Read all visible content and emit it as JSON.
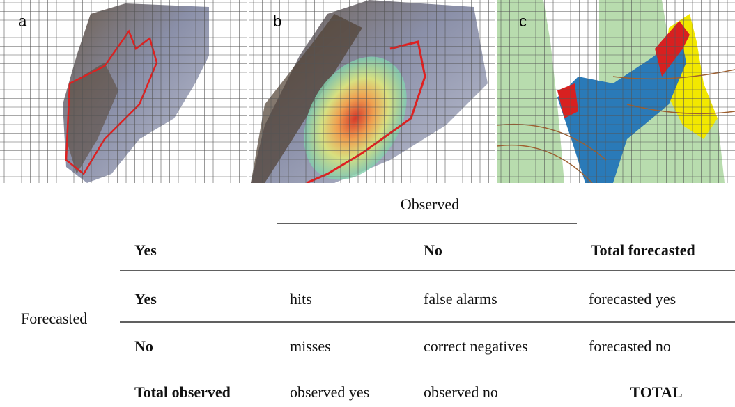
{
  "panels": [
    {
      "label": "a"
    },
    {
      "label": "b"
    },
    {
      "label": "c"
    }
  ],
  "table": {
    "observed": "Observed",
    "forecasted": "Forecasted",
    "header": [
      "Yes",
      "No",
      "Total forecasted"
    ],
    "rows": [
      [
        "Yes",
        "hits",
        "false alarms",
        "forecasted yes"
      ],
      [
        "No",
        "misses",
        "correct negatives",
        "forecasted no"
      ],
      [
        "Total observed",
        "observed yes",
        "observed no",
        "TOTAL"
      ]
    ]
  }
}
